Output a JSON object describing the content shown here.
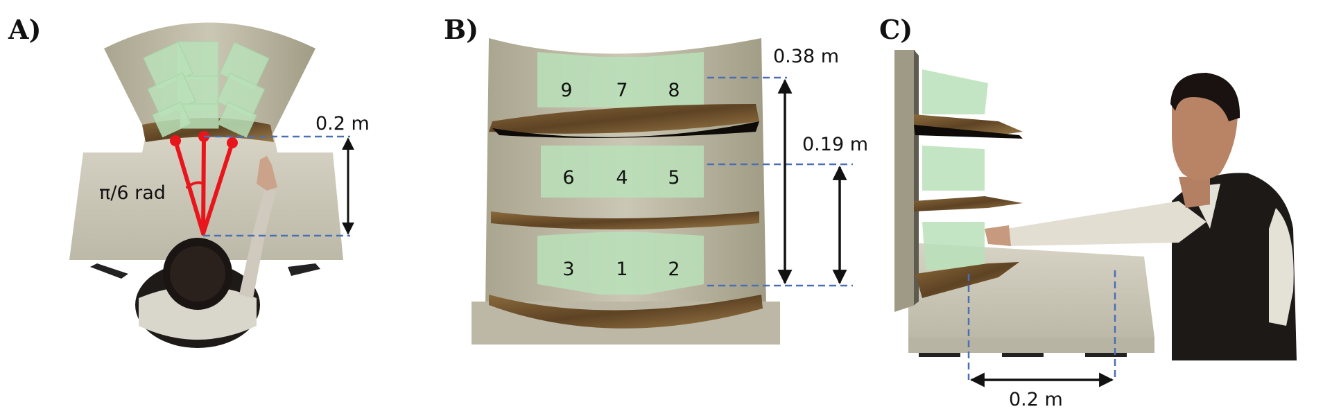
{
  "panels": {
    "a": {
      "label": "A)",
      "angle_label": "π/6 rad",
      "distance_label": "0.2 m"
    },
    "b": {
      "label": "B)",
      "total_height_label": "0.38 m",
      "shelf_spacing_label": "0.19 m",
      "bins": [
        "9",
        "7",
        "8",
        "6",
        "4",
        "5",
        "3",
        "1",
        "2"
      ]
    },
    "c": {
      "label": "C)",
      "reach_label": "0.2 m"
    }
  },
  "colors": {
    "dashed": "#4a6fb5",
    "red": "#e8161c",
    "wood": "#7a5a32",
    "bin": "#b9e0b9",
    "board": "#b8b3a0"
  }
}
